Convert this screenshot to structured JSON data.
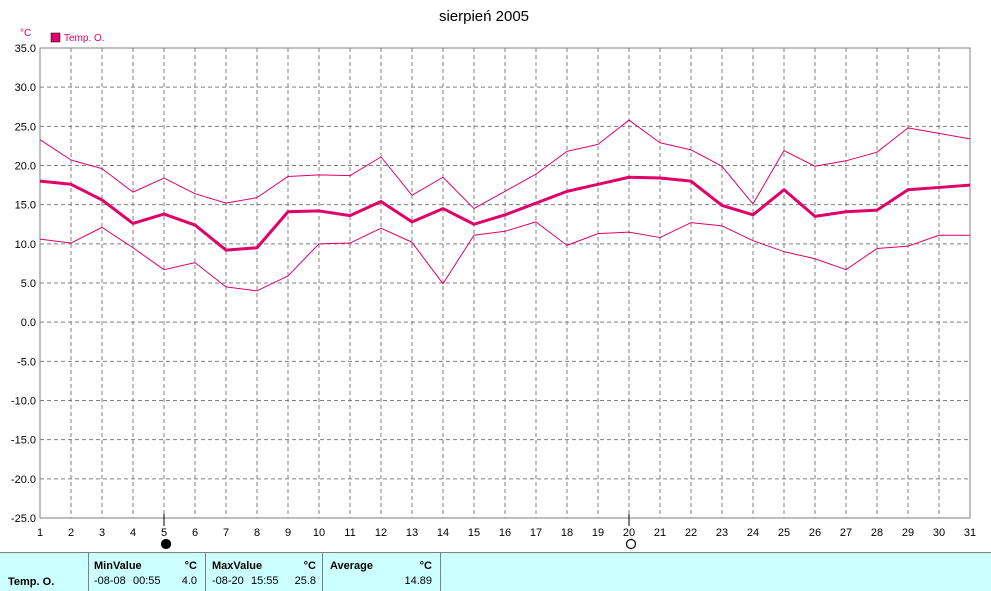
{
  "chart_data": {
    "type": "line",
    "title": "sierpień 2005",
    "y_unit": "°C",
    "legend": [
      "Temp. O."
    ],
    "legend_placement": "top-left",
    "grid": true,
    "x": [
      1,
      2,
      3,
      4,
      5,
      6,
      7,
      8,
      9,
      10,
      11,
      12,
      13,
      14,
      15,
      16,
      17,
      18,
      19,
      20,
      21,
      22,
      23,
      24,
      25,
      26,
      27,
      28,
      29,
      30,
      31
    ],
    "xlim": [
      1,
      31
    ],
    "ylim": [
      -25,
      35
    ],
    "y_ticks": [
      "35.0",
      "30.0",
      "25.0",
      "20.0",
      "15.0",
      "10.0",
      "5.0",
      "0.0",
      "-5.0",
      "-10.0",
      "-15.0",
      "-20.0",
      "-25.0"
    ],
    "series": [
      {
        "name": "Temp. O.",
        "role": "max",
        "values": [
          23.3,
          20.7,
          19.6,
          16.6,
          18.4,
          16.4,
          15.2,
          15.9,
          18.6,
          18.8,
          18.7,
          21.1,
          16.2,
          18.5,
          14.5,
          16.7,
          18.9,
          21.8,
          22.7,
          25.8,
          22.9,
          22.0,
          19.9,
          15.1,
          21.9,
          19.9,
          20.6,
          21.7,
          24.8,
          24.1,
          23.4
        ]
      },
      {
        "name": "Temp. O.",
        "role": "avg",
        "values": [
          18.0,
          17.6,
          15.6,
          12.6,
          13.8,
          12.4,
          9.2,
          9.5,
          14.1,
          14.2,
          13.6,
          15.4,
          12.8,
          14.5,
          12.5,
          13.7,
          15.2,
          16.7,
          17.6,
          18.5,
          18.4,
          18.0,
          14.9,
          13.7,
          16.9,
          13.5,
          14.1,
          14.3,
          16.9,
          17.2,
          17.5
        ]
      },
      {
        "name": "Temp. O.",
        "role": "min",
        "values": [
          10.6,
          10.1,
          12.1,
          9.5,
          6.7,
          7.6,
          4.5,
          4.0,
          5.9,
          10.0,
          10.1,
          12.0,
          10.2,
          4.9,
          11.1,
          11.6,
          12.8,
          9.8,
          11.3,
          11.5,
          10.8,
          12.7,
          12.3,
          10.4,
          9.0,
          8.1,
          6.7,
          9.4,
          9.7,
          11.1,
          11.1
        ]
      }
    ],
    "markers": [
      {
        "day": 5,
        "symbol": "new-moon"
      },
      {
        "day": 20,
        "symbol": "full-moon"
      }
    ],
    "colors": {
      "series": "#e0006a",
      "grid": "#808080",
      "axis": "#000000",
      "legend_box": "#e0006a",
      "stats_bg": "#ccffff"
    }
  },
  "stats": {
    "row_label": "Temp. O.",
    "min": {
      "header": "MinValue",
      "unit": "°C",
      "date": "-08-08",
      "time": "00:55",
      "value": "4.0"
    },
    "max": {
      "header": "MaxValue",
      "unit": "°C",
      "date": "-08-20",
      "time": "15:55",
      "value": "25.8"
    },
    "avg": {
      "header": "Average",
      "unit": "°C",
      "value": "14.89"
    }
  }
}
